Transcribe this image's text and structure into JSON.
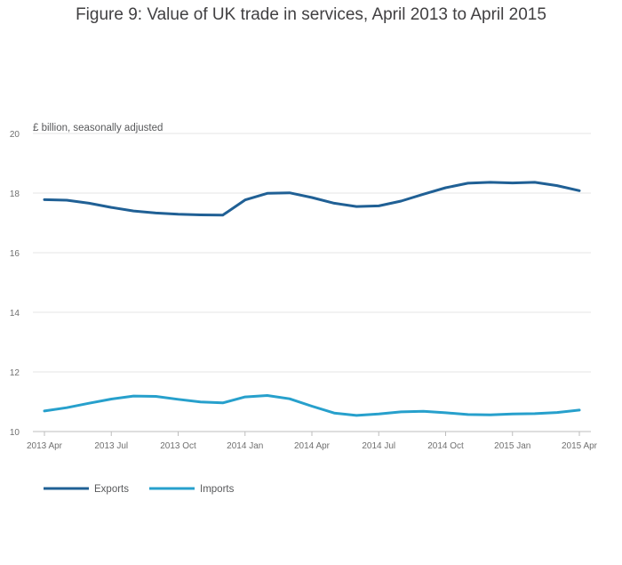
{
  "chart_data": {
    "type": "line",
    "title": "Figure 9: Value of UK trade in services, April 2013 to April 2015",
    "ylabel": "£ billion, seasonally adjusted",
    "xlabel": "",
    "ylim": [
      10,
      20
    ],
    "yticks": [
      "20",
      "18",
      "16",
      "14",
      "12",
      "10"
    ],
    "xticks": [
      "2013 Apr",
      "2013 Jul",
      "2013 Oct",
      "2014 Jan",
      "2014 Apr",
      "2014 Jul",
      "2014 Oct",
      "2015 Jan",
      "2015 Apr"
    ],
    "categories": [
      "2013 Apr",
      "2013 May",
      "2013 Jun",
      "2013 Jul",
      "2013 Aug",
      "2013 Sep",
      "2013 Oct",
      "2013 Nov",
      "2013 Dec",
      "2014 Jan",
      "2014 Feb",
      "2014 Mar",
      "2014 Apr",
      "2014 May",
      "2014 Jun",
      "2014 Jul",
      "2014 Aug",
      "2014 Sep",
      "2014 Oct",
      "2014 Nov",
      "2014 Dec",
      "2015 Jan",
      "2015 Feb",
      "2015 Mar",
      "2015 Apr"
    ],
    "series": [
      {
        "name": "Exports",
        "color": "#206095",
        "values": [
          17.78,
          17.76,
          17.66,
          17.52,
          17.4,
          17.33,
          17.29,
          17.27,
          17.26,
          17.77,
          17.99,
          18.01,
          17.85,
          17.66,
          17.55,
          17.57,
          17.73,
          17.96,
          18.18,
          18.33,
          18.36,
          18.34,
          18.36,
          18.25,
          18.08
        ]
      },
      {
        "name": "Imports",
        "color": "#27a0cc",
        "values": [
          10.69,
          10.8,
          10.95,
          11.09,
          11.19,
          11.18,
          11.08,
          10.99,
          10.96,
          11.16,
          11.21,
          11.1,
          10.85,
          10.62,
          10.54,
          10.59,
          10.66,
          10.68,
          10.63,
          10.57,
          10.56,
          10.59,
          10.6,
          10.64,
          10.72
        ]
      }
    ],
    "legend": "bottom-left"
  }
}
